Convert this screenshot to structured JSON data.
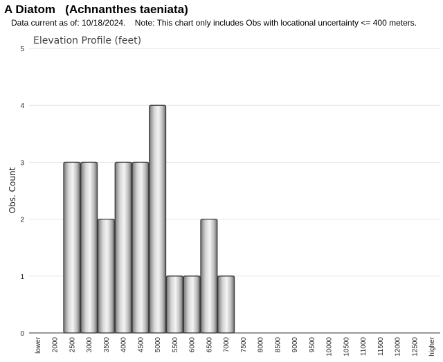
{
  "header": {
    "title": "A Diatom   (Achnanthes taeniata)",
    "subtitle": "Data current as of: 10/18/2024.    Note: This chart only includes Obs with locational uncertainty <= 400 meters."
  },
  "chart_data": {
    "type": "bar",
    "title": "Elevation Profile (feet)",
    "xlabel": "",
    "ylabel": "Obs. Count",
    "ylim": [
      0,
      5
    ],
    "yticks": [
      "0",
      "1",
      "2",
      "3",
      "4",
      "5"
    ],
    "grid": true,
    "categories": [
      "lower",
      "2000",
      "2500",
      "3000",
      "3500",
      "4000",
      "4500",
      "5000",
      "5500",
      "6000",
      "6500",
      "7000",
      "7500",
      "8000",
      "8500",
      "9000",
      "9500",
      "10000",
      "10500",
      "11000",
      "11500",
      "12000",
      "12500",
      "higher"
    ],
    "values": [
      0,
      0,
      3,
      3,
      2,
      3,
      3,
      4,
      1,
      1,
      2,
      1,
      0,
      0,
      0,
      0,
      0,
      0,
      0,
      0,
      0,
      0,
      0,
      0
    ],
    "bar_color": "#b8b8b8"
  }
}
